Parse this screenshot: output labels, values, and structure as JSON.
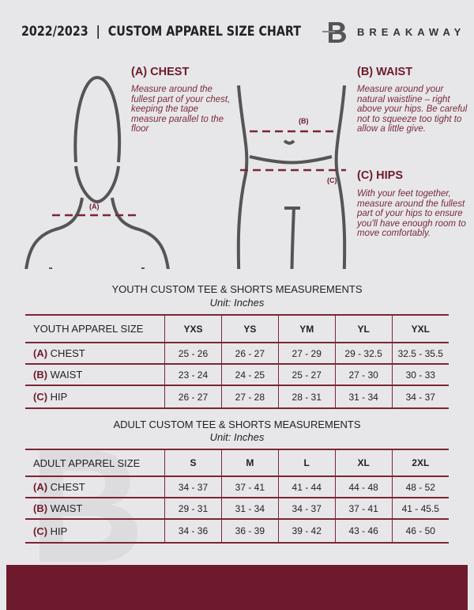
{
  "header": {
    "title": "2022/2023  |  CUSTOM APPAREL SIZE CHART",
    "brand": "BREAKAWAY",
    "logo_letter": "B"
  },
  "guide": {
    "chest": {
      "title": "(A) CHEST",
      "text": "Measure around the fullest part of your chest, keeping the tape measure parallel to the floor",
      "marker": "(A)"
    },
    "waist": {
      "title": "(B) WAIST",
      "text": "Measure around your natural waistline – right above your hips. Be careful not to squeeze too tight to allow a little give.",
      "marker": "(B)"
    },
    "hips": {
      "title": "(C) HIPS",
      "text": "With your feet together, measure around the fullest part of your hips to ensure you'll have enough room to move comfortably.",
      "marker": "(C)"
    }
  },
  "youth": {
    "title": "YOUTH CUSTOM TEE & SHORTS MEASUREMENTS",
    "unit": "Unit: Inches",
    "header": [
      "YOUTH APPAREL SIZE",
      "YXS",
      "YS",
      "YM",
      "YL",
      "YXL"
    ],
    "rows": [
      {
        "letter": "(A)",
        "label": "CHEST",
        "values": [
          "25 - 26",
          "26 - 27",
          "27 - 29",
          "29 - 32.5",
          "32.5 - 35.5"
        ]
      },
      {
        "letter": "(B)",
        "label": "WAIST",
        "values": [
          "23 - 24",
          "24 - 25",
          "25 - 27",
          "27 - 30",
          "30 - 33"
        ]
      },
      {
        "letter": "(C)",
        "label": "HIP",
        "values": [
          "26 - 27",
          "27 - 28",
          "28 - 31",
          "31 - 34",
          "34 - 37"
        ]
      }
    ]
  },
  "adult": {
    "title": "ADULT CUSTOM TEE & SHORTS MEASUREMENTS",
    "unit": "Unit: Inches",
    "header": [
      "ADULT APPAREL SIZE",
      "S",
      "M",
      "L",
      "XL",
      "2XL"
    ],
    "rows": [
      {
        "letter": "(A)",
        "label": "CHEST",
        "values": [
          "34 - 37",
          "37 - 41",
          "41 - 44",
          "44 - 48",
          "48 - 52"
        ]
      },
      {
        "letter": "(B)",
        "label": "WAIST",
        "values": [
          "29 - 31",
          "31 - 34",
          "34 - 37",
          "37 - 41",
          "41 - 45.5"
        ]
      },
      {
        "letter": "(C)",
        "label": "HIP",
        "values": [
          "34 - 36",
          "36 - 39",
          "39 - 42",
          "43 - 46",
          "46 - 50"
        ]
      }
    ]
  },
  "colors": {
    "accent": "#6e1a2d",
    "background": "#e7e7e9"
  }
}
